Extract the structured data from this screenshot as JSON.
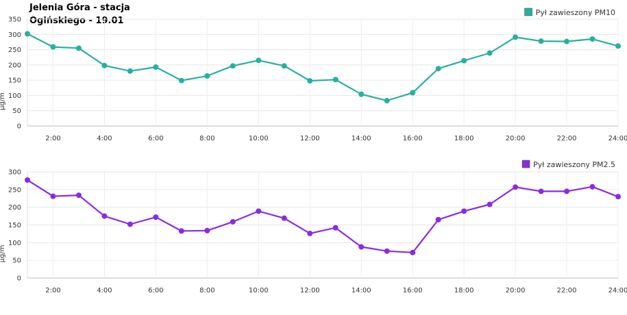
{
  "title": {
    "line1": "Jelenia Góra - stacja",
    "line2": "Ogińskiego - 19.01"
  },
  "chart_data": [
    {
      "type": "line",
      "ylabel": "µg/m",
      "legend": "Pył zawieszony PM10",
      "legend_placement": "top-right",
      "color": "#26b0a0",
      "grid": true,
      "ylim": [
        0,
        350
      ],
      "yticks": [
        0,
        50,
        100,
        150,
        200,
        250,
        300,
        350
      ],
      "xlim": [
        1,
        24
      ],
      "x_tick_labels": [
        "2:00",
        "4:00",
        "6:00",
        "8:00",
        "10:00",
        "12:00",
        "14:00",
        "16:00",
        "18:00",
        "20:00",
        "22:00",
        "24:00"
      ],
      "x": [
        1,
        2,
        3,
        4,
        5,
        6,
        7,
        8,
        9,
        10,
        11,
        12,
        13,
        14,
        15,
        16,
        17,
        18,
        19,
        20,
        21,
        22,
        23,
        24
      ],
      "values": [
        302,
        259,
        255,
        198,
        180,
        193,
        149,
        164,
        197,
        215,
        197,
        148,
        152,
        104,
        83,
        109,
        188,
        214,
        239,
        291,
        278,
        277,
        285,
        262
      ]
    },
    {
      "type": "line",
      "ylabel": "µg/m",
      "legend": "Pył zawieszony PM2.5",
      "legend_placement": "top-right",
      "color": "#8a2be2",
      "grid": true,
      "ylim": [
        0,
        300
      ],
      "yticks": [
        0,
        50,
        100,
        150,
        200,
        250,
        300
      ],
      "xlim": [
        1,
        24
      ],
      "x_tick_labels": [
        "2:00",
        "4:00",
        "6:00",
        "8:00",
        "10:00",
        "12:00",
        "14:00",
        "16:00",
        "18:00",
        "20:00",
        "22:00",
        "24:00"
      ],
      "x": [
        1,
        2,
        3,
        4,
        5,
        6,
        7,
        8,
        9,
        10,
        11,
        12,
        13,
        14,
        15,
        16,
        17,
        18,
        19,
        20,
        21,
        22,
        23,
        24
      ],
      "values": [
        277,
        231,
        234,
        175,
        152,
        172,
        133,
        134,
        159,
        189,
        169,
        126,
        142,
        88,
        76,
        72,
        165,
        189,
        208,
        257,
        245,
        245,
        258,
        230
      ]
    }
  ]
}
